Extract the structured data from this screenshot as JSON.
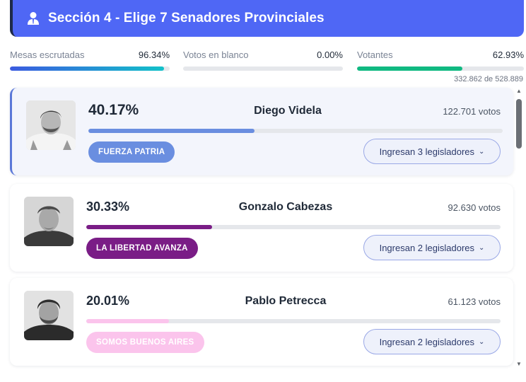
{
  "header": {
    "title": "Sección 4 - Elige 7 Senadores Provinciales",
    "bg_color": "#4f67f5"
  },
  "stats": [
    {
      "label": "Mesas escrutadas",
      "value": "96.34%",
      "fraction": 0.9634,
      "color": "#3a86e0"
    },
    {
      "label": "Votos en blanco",
      "value": "0.00%",
      "fraction": 0.0,
      "color": "#9ca3af"
    },
    {
      "label": "Votantes",
      "value": "62.93%",
      "fraction": 0.6293,
      "color": "#10b981"
    }
  ],
  "voters_count": "332.862 de 528.889",
  "candidates": [
    {
      "pct": "40.17%",
      "fraction": 0.4017,
      "name": "Diego Videla",
      "votes": "122.701 votos",
      "party": "FUERZA PATRIA",
      "party_color": "#6a8ee0",
      "bar_color": "#6a8ee0",
      "ingresan": "Ingresan 3 legisladores",
      "active": true
    },
    {
      "pct": "30.33%",
      "fraction": 0.3033,
      "name": "Gonzalo Cabezas",
      "votes": "92.630 votos",
      "party": "LA LIBERTAD AVANZA",
      "party_color": "#7a1d86",
      "bar_color": "#7a1d86",
      "ingresan": "Ingresan 2 legisladores",
      "active": false
    },
    {
      "pct": "20.01%",
      "fraction": 0.2001,
      "name": "Pablo Petrecca",
      "votes": "61.123 votos",
      "party": "SOMOS BUENOS AIRES",
      "party_color": "#fbc4ec",
      "bar_color": "#fbc4ec",
      "ingresan": "Ingresan 2 legisladores",
      "active": false
    }
  ],
  "icons": {
    "header": "user-icon",
    "chevron": "chevron-down-icon",
    "scroll_up": "scroll-up-arrow-icon",
    "scroll_down": "scroll-down-arrow-icon"
  }
}
